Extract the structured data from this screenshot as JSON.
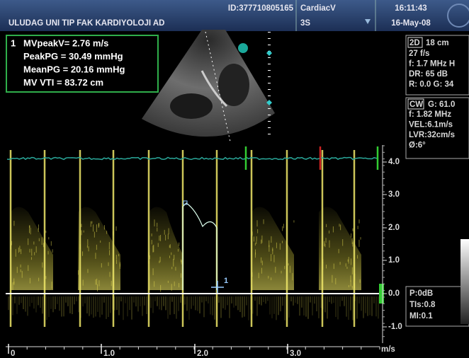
{
  "header": {
    "institution": "ULUDAG UNI TIP FAK KARDIYOLOJI AD",
    "patient_id": "ID:377710805165",
    "preset": "CardiacV",
    "probe": "3S",
    "time": "16:11:43",
    "date": "16-May-08"
  },
  "measurements": {
    "index": "1",
    "lines": [
      "MVpeakV= 2.76 m/s",
      "PeakPG = 30.49 mmHg",
      "MeanPG = 20.16 mmHg",
      "MV VTI  = 83.72 cm"
    ]
  },
  "image_settings": {
    "mode": "2D",
    "depth": "18 cm",
    "lines": [
      "27 f/s",
      "f: 1.7 MHz H",
      "DR: 65 dB",
      "R: 0.0   G: 34"
    ]
  },
  "doppler_settings": {
    "mode": "CW",
    "gain": "G: 61.0",
    "lines": [
      "f: 1.82 MHz",
      "VEL:6.1m/s",
      "LVR:32cm/s",
      "Ø:6°"
    ]
  },
  "output": {
    "lines": [
      "P:0dB",
      "TIs:0.8",
      "MI:0.1"
    ]
  },
  "velocity_scale": {
    "unit": "m/s",
    "labels": [
      "4.0",
      "3.0",
      "2.0",
      "1.0",
      "0.0",
      "-1.0"
    ]
  },
  "time_scale": {
    "labels": [
      "0",
      "1.0",
      "2.0",
      "3.0"
    ]
  },
  "cursor_label": "1"
}
